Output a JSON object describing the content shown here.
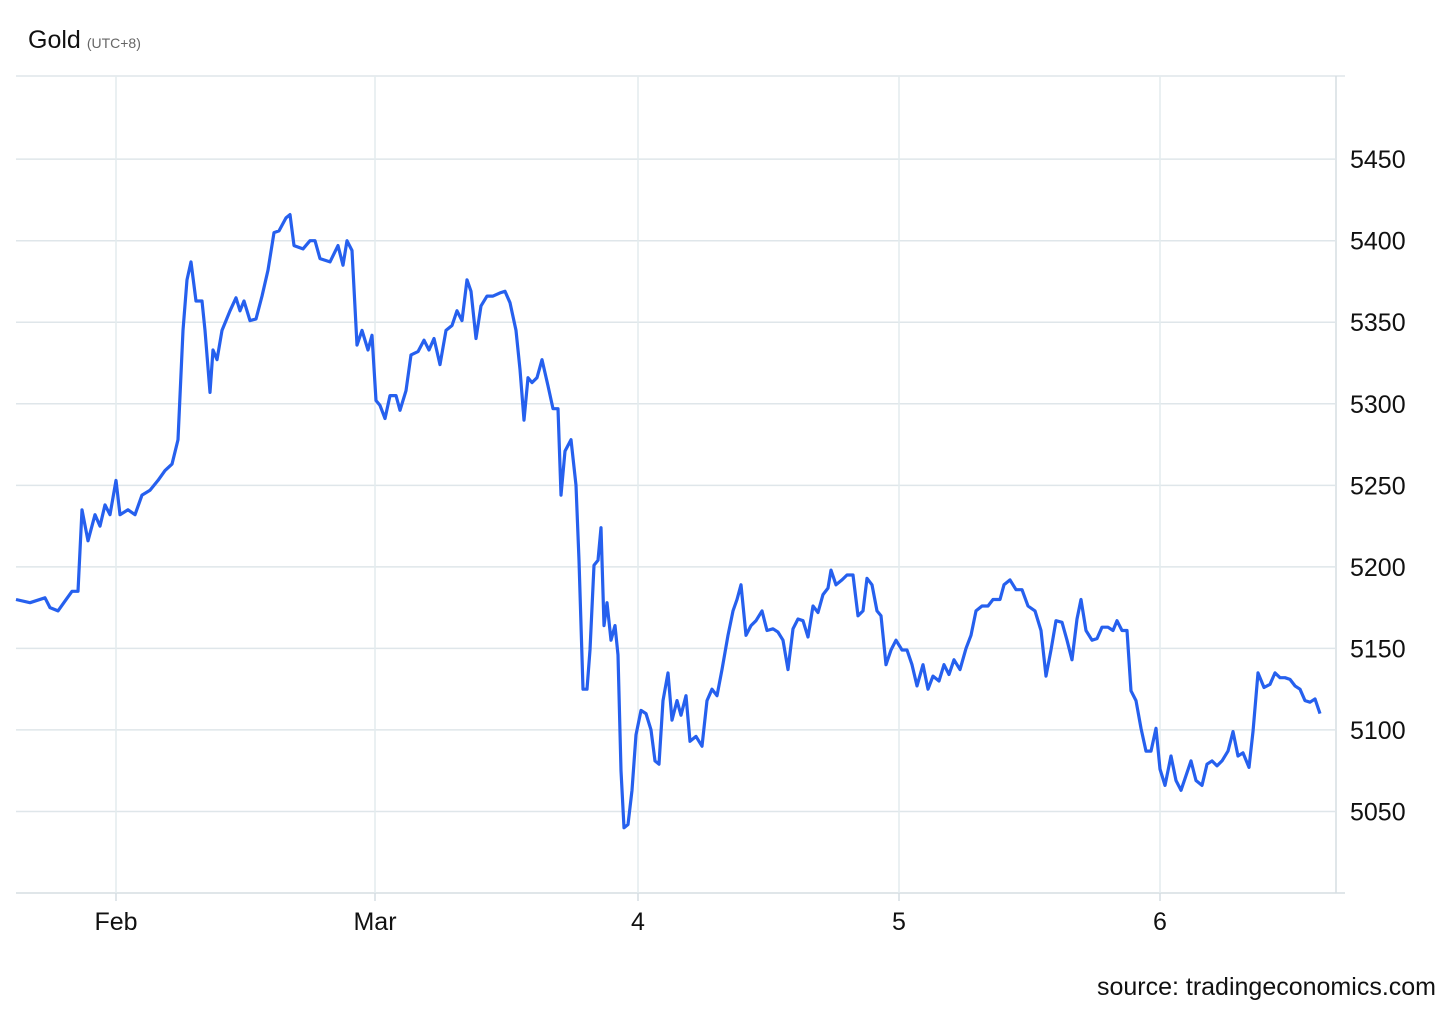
{
  "chart_data": {
    "type": "line",
    "title": "Gold",
    "subtitle": "(UTC+8)",
    "source": "source: tradingeconomics.com",
    "x": [
      0,
      14,
      29,
      34,
      42,
      49,
      56,
      62,
      66,
      72,
      79,
      84,
      89,
      94,
      100,
      104,
      112,
      119,
      126,
      134,
      142,
      149,
      156,
      162,
      167,
      171,
      175,
      180,
      186,
      189,
      194,
      197,
      201,
      206,
      210,
      214,
      220,
      224,
      228,
      234,
      240,
      246,
      252,
      258,
      263,
      270,
      274,
      278,
      287,
      294,
      299,
      304,
      314,
      322,
      327,
      331,
      336,
      341,
      346,
      352,
      356,
      360,
      364,
      369,
      374,
      380,
      384,
      390,
      395,
      402,
      408,
      413,
      418,
      424,
      430,
      436,
      441,
      446,
      451,
      455,
      460,
      465,
      471,
      477,
      484,
      489,
      494,
      500,
      504,
      508,
      512,
      516,
      521,
      526,
      532,
      537,
      542,
      545,
      549,
      555,
      560,
      563,
      567,
      571,
      574,
      578,
      582,
      585,
      588,
      591,
      595,
      599,
      602,
      605,
      608,
      612,
      616,
      620,
      625,
      630,
      635,
      639,
      643,
      647,
      652,
      656,
      661,
      665,
      670,
      674,
      680,
      686,
      691,
      696,
      701,
      706,
      712,
      717,
      721,
      725,
      730,
      735,
      740,
      746,
      751,
      757,
      762,
      767,
      772,
      777,
      782,
      787,
      792,
      797,
      802,
      807,
      812,
      815,
      820,
      826,
      831,
      837,
      842,
      847,
      851,
      856,
      861,
      865,
      870,
      875,
      880,
      886,
      891,
      896,
      901,
      907,
      912,
      917,
      923,
      928,
      933,
      938,
      944,
      950,
      955,
      960,
      966,
      972,
      977,
      984,
      988,
      994,
      1000,
      1006,
      1012,
      1019,
      1025,
      1030,
      1035,
      1040,
      1046,
      1051,
      1056,
      1061,
      1065,
      1070,
      1076,
      1081,
      1086,
      1092,
      1097,
      1101,
      1106,
      1111,
      1115,
      1120,
      1125,
      1130,
      1135,
      1140,
      1144,
      1149,
      1155,
      1160,
      1165,
      1170,
      1175,
      1180,
      1186,
      1191,
      1196,
      1201,
      1206,
      1212,
      1217,
      1222,
      1227,
      1233,
      1237,
      1242,
      1248,
      1254,
      1259,
      1264,
      1269,
      1274,
      1279,
      1284,
      1289,
      1294,
      1299,
      1304
    ],
    "values": [
      5180,
      5178,
      5181,
      5175,
      5173,
      5179,
      5185,
      5185,
      5235,
      5216,
      5232,
      5225,
      5238,
      5232,
      5253,
      5232,
      5235,
      5232,
      5244,
      5247,
      5253,
      5259,
      5263,
      5278,
      5345,
      5376,
      5387,
      5363,
      5363,
      5345,
      5307,
      5333,
      5327,
      5345,
      5351,
      5357,
      5365,
      5357,
      5363,
      5351,
      5352,
      5366,
      5382,
      5405,
      5406,
      5414,
      5416,
      5397,
      5395,
      5400,
      5400,
      5389,
      5387,
      5397,
      5385,
      5400,
      5394,
      5336,
      5345,
      5333,
      5342,
      5302,
      5299,
      5291,
      5305,
      5305,
      5296,
      5308,
      5330,
      5332,
      5339,
      5333,
      5340,
      5324,
      5345,
      5348,
      5357,
      5351,
      5376,
      5369,
      5340,
      5360,
      5366,
      5366,
      5368,
      5369,
      5362,
      5345,
      5321,
      5290,
      5316,
      5313,
      5316,
      5327,
      5311,
      5297,
      5297,
      5244,
      5271,
      5278,
      5250,
      5204,
      5125,
      5125,
      5149,
      5201,
      5204,
      5224,
      5164,
      5178,
      5155,
      5164,
      5146,
      5075,
      5040,
      5042,
      5063,
      5097,
      5112,
      5110,
      5100,
      5081,
      5079,
      5118,
      5135,
      5106,
      5118,
      5109,
      5121,
      5093,
      5096,
      5090,
      5118,
      5125,
      5121,
      5137,
      5158,
      5173,
      5180,
      5189,
      5158,
      5164,
      5167,
      5173,
      5161,
      5162,
      5160,
      5155,
      5137,
      5162,
      5168,
      5167,
      5157,
      5176,
      5172,
      5183,
      5187,
      5198,
      5189,
      5192,
      5195,
      5195,
      5170,
      5173,
      5193,
      5189,
      5173,
      5170,
      5140,
      5149,
      5155,
      5149,
      5149,
      5140,
      5127,
      5140,
      5125,
      5133,
      5130,
      5140,
      5134,
      5143,
      5137,
      5150,
      5158,
      5173,
      5176,
      5176,
      5180,
      5180,
      5189,
      5192,
      5186,
      5186,
      5176,
      5173,
      5161,
      5133,
      5149,
      5167,
      5166,
      5155,
      5143,
      5168,
      5180,
      5161,
      5155,
      5156,
      5163,
      5163,
      5161,
      5167,
      5161,
      5161,
      5124,
      5118,
      5101,
      5087,
      5087,
      5101,
      5076,
      5066,
      5084,
      5069,
      5063,
      5072,
      5081,
      5069,
      5066,
      5079,
      5081,
      5078,
      5081,
      5087,
      5099,
      5084,
      5086,
      5077,
      5099,
      5135,
      5126,
      5128,
      5135,
      5132,
      5132,
      5131,
      5127,
      5125,
      5118,
      5117,
      5119,
      5110
    ],
    "color": "#2660ee",
    "xlim": [
      0,
      1320
    ],
    "xticks": [
      {
        "value": 100,
        "label": "Feb"
      },
      {
        "value": 359,
        "label": "Mar"
      },
      {
        "value": 622,
        "label": "4"
      },
      {
        "value": 883,
        "label": "5"
      },
      {
        "value": 1144,
        "label": "6"
      }
    ],
    "ylim": [
      5000,
      5501
    ],
    "yticks": [
      5050,
      5100,
      5150,
      5200,
      5250,
      5300,
      5350,
      5400,
      5450
    ],
    "grid": true
  }
}
